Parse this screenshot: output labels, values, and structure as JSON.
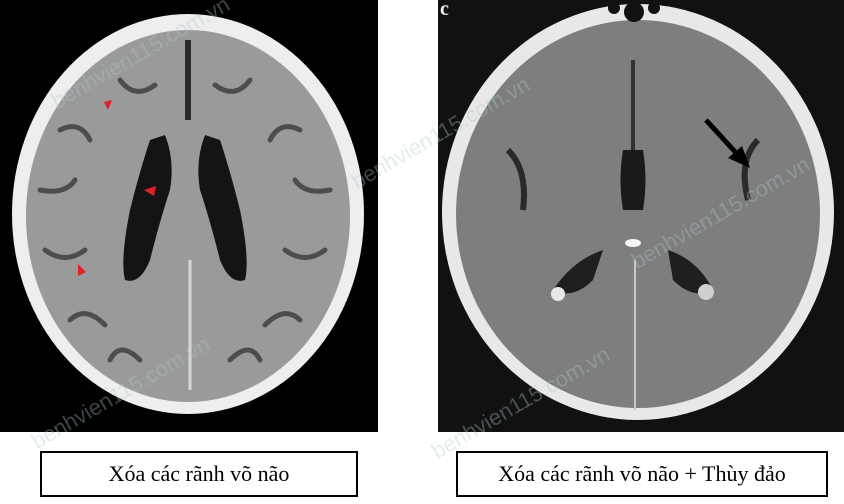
{
  "panels": [
    {
      "id": "left",
      "letter": "",
      "caption": "Xóa các rãnh võ não"
    },
    {
      "id": "right",
      "letter": "c",
      "caption": "Xóa các rãnh võ não + Thùy đảo"
    }
  ],
  "watermark": "benhvien115.com.vn",
  "colors": {
    "arrowhead": "#e0202a",
    "scan_background": "#000000",
    "skull": "#f4f4f4",
    "brain": "#8a8a8a"
  }
}
